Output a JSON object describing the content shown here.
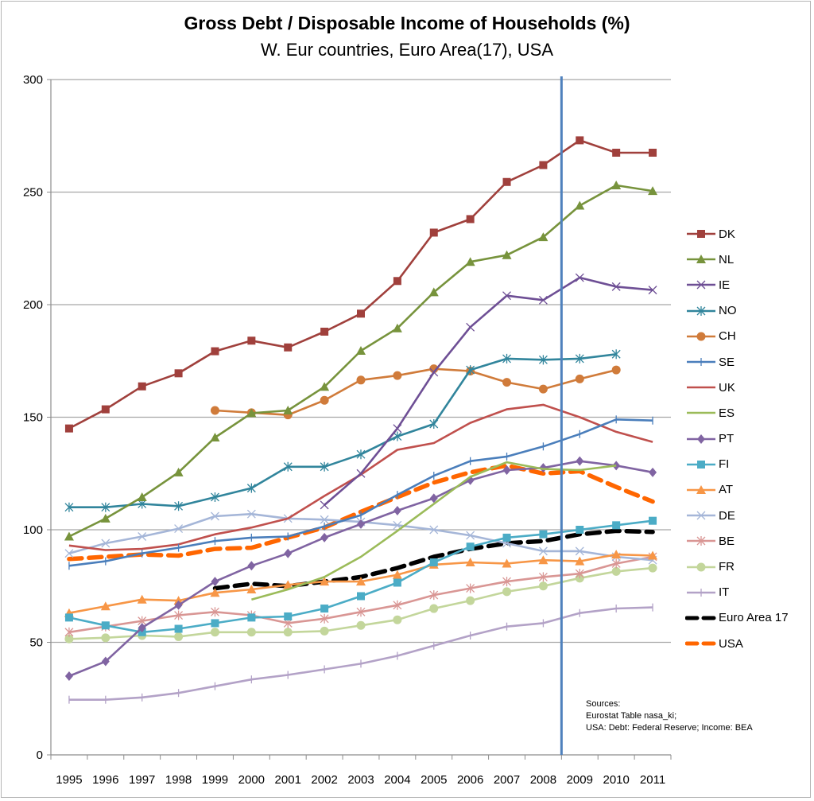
{
  "chart_data": {
    "type": "line",
    "title": "Gross Debt / Disposable Income of Households (%)",
    "subtitle": "W. Eur countries, Euro Area(17), USA",
    "xlabel": "",
    "ylabel": "",
    "ylim": [
      0,
      300
    ],
    "yticks": [
      0,
      50,
      100,
      150,
      200,
      250,
      300
    ],
    "ytick_labels": [
      "0",
      "50",
      "100",
      "150",
      "200",
      "250",
      "300"
    ],
    "grid": true,
    "legend_position": "right",
    "categories": [
      "1995",
      "1996",
      "1997",
      "1998",
      "1999",
      "2000",
      "2001",
      "2002",
      "2003",
      "2004",
      "2005",
      "2006",
      "2007",
      "2008",
      "2009",
      "2010",
      "2011"
    ],
    "vertical_marker": {
      "between": [
        "2008",
        "2009"
      ],
      "color": "#4f81bd"
    },
    "series": [
      {
        "name": "DK",
        "color": "#a0403c",
        "marker": "square",
        "dash": "solid",
        "values": [
          145,
          153.5,
          163.7,
          169.5,
          179.3,
          184,
          181,
          188,
          196,
          210.5,
          232,
          238,
          254.5,
          262,
          273,
          267.5,
          267.5
        ]
      },
      {
        "name": "NL",
        "color": "#77933c",
        "marker": "triangle",
        "dash": "solid",
        "values": [
          97,
          105,
          114.5,
          125.5,
          141,
          151.8,
          153,
          163.5,
          179.5,
          189.5,
          205.5,
          219,
          222,
          230,
          244,
          253,
          250.5
        ]
      },
      {
        "name": "IE",
        "color": "#6e4f95",
        "marker": "x",
        "dash": "solid",
        "values": [
          null,
          null,
          null,
          null,
          null,
          null,
          null,
          111,
          125,
          145,
          170,
          190,
          204,
          202,
          212,
          208,
          206.5
        ]
      },
      {
        "name": "NO",
        "color": "#31859c",
        "marker": "star",
        "dash": "solid",
        "values": [
          110,
          110,
          111.5,
          110.5,
          114.5,
          118.5,
          128,
          128,
          133.5,
          141.5,
          147,
          171,
          176,
          175.5,
          176,
          178,
          null
        ]
      },
      {
        "name": "CH",
        "color": "#d07b3a",
        "marker": "circle",
        "dash": "solid",
        "values": [
          null,
          null,
          null,
          null,
          153,
          152,
          151,
          157.5,
          166.5,
          168.5,
          171.5,
          170.5,
          165.5,
          162.5,
          167,
          171,
          null
        ]
      },
      {
        "name": "SE",
        "color": "#4a7ebb",
        "marker": "plus",
        "dash": "solid",
        "values": [
          84,
          86,
          89.5,
          92,
          95,
          96.5,
          97,
          101.5,
          106.5,
          115.5,
          124,
          130.5,
          132.5,
          137,
          142.5,
          149,
          148.5
        ]
      },
      {
        "name": "UK",
        "color": "#c0504d",
        "marker": "none",
        "dash": "solid",
        "values": [
          93,
          91,
          91.5,
          93.5,
          98,
          101,
          105,
          115,
          124.5,
          135.5,
          138.5,
          147.5,
          153.5,
          155.5,
          150,
          143.5,
          139
        ]
      },
      {
        "name": "ES",
        "color": "#9bbb59",
        "marker": "none",
        "dash": "solid",
        "values": [
          null,
          null,
          null,
          null,
          null,
          69,
          73.5,
          79,
          88,
          99.5,
          111.5,
          123.5,
          130,
          127,
          126.5,
          128.5,
          null
        ]
      },
      {
        "name": "PT",
        "color": "#8064a2",
        "marker": "diamond",
        "dash": "solid",
        "values": [
          35,
          41.5,
          56.5,
          66.5,
          77,
          84,
          89.5,
          96.5,
          102.5,
          108.5,
          114,
          122,
          126.5,
          127.5,
          130.5,
          128.5,
          125.5
        ]
      },
      {
        "name": "FI",
        "color": "#4bacc6",
        "marker": "square",
        "dash": "solid",
        "values": [
          61,
          57.5,
          54.5,
          56,
          58.5,
          61,
          61.5,
          65,
          70.5,
          76.5,
          85.5,
          92.5,
          96.5,
          98,
          100,
          102,
          104
        ]
      },
      {
        "name": "AT",
        "color": "#f79646",
        "marker": "triangle",
        "dash": "solid",
        "values": [
          63,
          66,
          69,
          68.5,
          72,
          73.5,
          75.5,
          77,
          77,
          80,
          84.5,
          85.5,
          85,
          86.5,
          86,
          89,
          88.5
        ]
      },
      {
        "name": "DE",
        "color": "#a5b6d8",
        "marker": "x",
        "dash": "solid",
        "values": [
          89.5,
          94,
          97,
          100.5,
          106,
          107,
          105,
          104.5,
          103.5,
          102,
          100,
          97.5,
          94,
          90.5,
          90.5,
          88,
          86.5
        ]
      },
      {
        "name": "BE",
        "color": "#d99694",
        "marker": "star",
        "dash": "solid",
        "values": [
          54.5,
          57,
          59.5,
          62,
          63.5,
          62,
          58.5,
          60.5,
          63.5,
          66.5,
          71,
          74,
          77,
          79,
          80.5,
          85,
          88
        ]
      },
      {
        "name": "FR",
        "color": "#c3d69b",
        "marker": "circle",
        "dash": "solid",
        "values": [
          51.5,
          52,
          53,
          52.5,
          54.5,
          54.5,
          54.5,
          55,
          57.5,
          60,
          65,
          68.5,
          72.5,
          75,
          78.5,
          81.5,
          83
        ]
      },
      {
        "name": "IT",
        "color": "#b3a2c7",
        "marker": "plus",
        "dash": "solid",
        "values": [
          24.5,
          24.5,
          25.5,
          27.5,
          30.5,
          33.5,
          35.5,
          38,
          40.5,
          44,
          48.5,
          53,
          57,
          58.5,
          63,
          65,
          65.5
        ]
      },
      {
        "name": "Euro Area 17",
        "color": "#000000",
        "marker": "none",
        "dash": "dashed",
        "values": [
          null,
          null,
          null,
          null,
          74,
          76,
          75,
          77,
          79,
          83,
          88,
          91.5,
          94,
          95,
          98,
          99.5,
          99
        ]
      },
      {
        "name": "USA",
        "color": "#ff6600",
        "marker": "none",
        "dash": "dashed",
        "values": [
          87,
          88,
          89,
          88.5,
          91.5,
          92,
          96.5,
          101,
          108,
          114.5,
          121,
          125.5,
          128.5,
          125,
          126,
          119,
          112.5
        ]
      }
    ],
    "annotation": {
      "lines": [
        "Sources:",
        "Eurostat Table  nasa_ki;",
        "USA: Debt: Federal Reserve; Income: BEA"
      ]
    }
  }
}
